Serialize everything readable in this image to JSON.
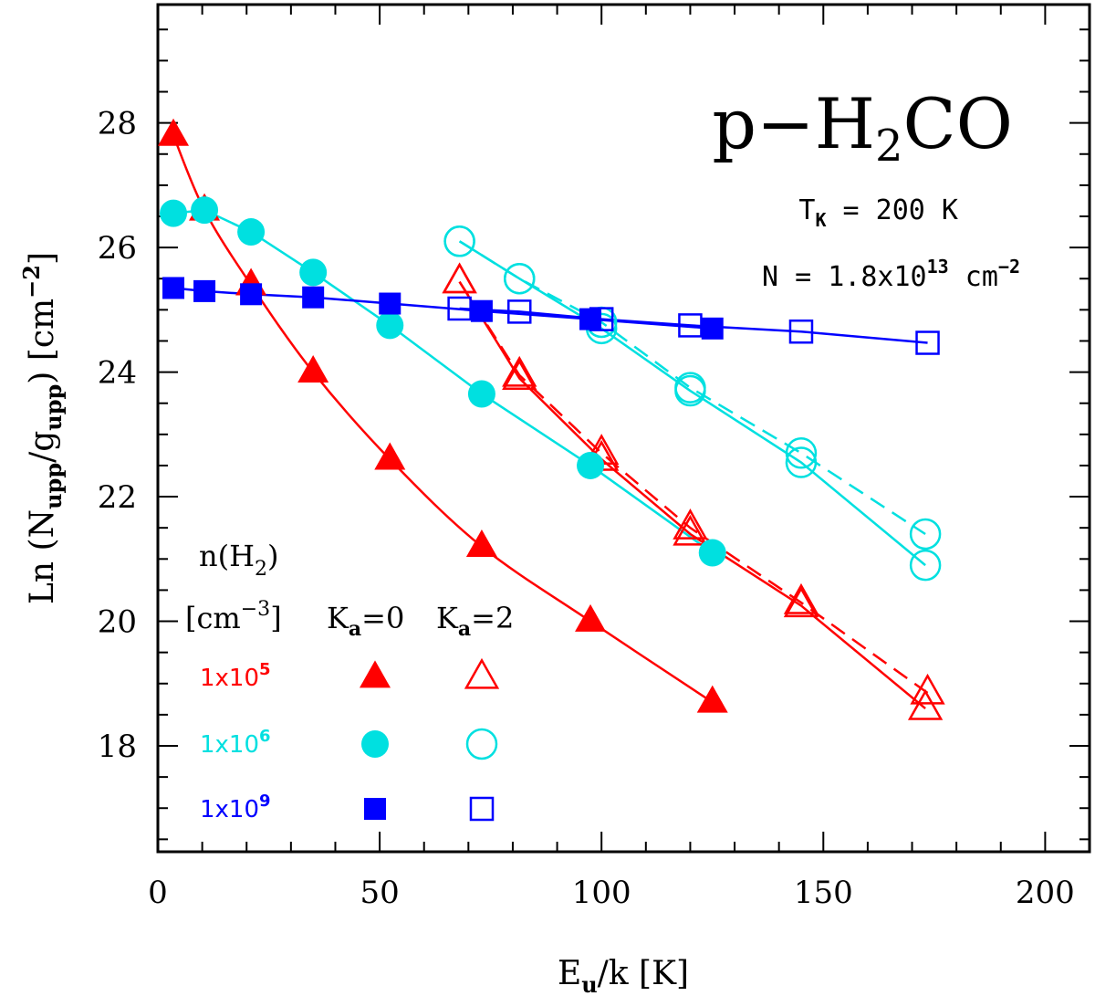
{
  "chart_data": {
    "type": "scatter",
    "title": "p-H2CO",
    "title_parts": {
      "main": "p−H",
      "sub": "2",
      "tail": "CO"
    },
    "xlabel": "E_u/k [K]",
    "xlabel_parts": {
      "main": "E",
      "sub": "u",
      "tail": "/k [K]"
    },
    "ylabel": "Ln (N_upp/g_upp) [cm^-2]",
    "ylabel_parts": {
      "lead": "Ln (N",
      "sub1": "upp",
      "mid": "/g",
      "sub2": "upp",
      "mid2": ") [cm",
      "sup": "−2",
      "tail": "]"
    },
    "xlim": [
      0,
      210
    ],
    "ylim": [
      16.3,
      29.9
    ],
    "xticks": [
      0,
      50,
      100,
      150,
      200
    ],
    "yticks": [
      18,
      20,
      22,
      24,
      26,
      28
    ],
    "xtick_labels": [
      "0",
      "50",
      "100",
      "150",
      "200"
    ],
    "ytick_labels": [
      "18",
      "20",
      "22",
      "24",
      "26",
      "28"
    ],
    "annotations": {
      "tk": {
        "main": "T",
        "sub": "K",
        "tail": " = 200 K"
      },
      "n": {
        "main": "N = 1.8x10",
        "sup": "13",
        "tail": " cm",
        "sup2": "−2"
      }
    },
    "legend": {
      "title_line1": {
        "main": "n(H",
        "sub": "2",
        "tail": ")"
      },
      "title_line2": {
        "main": "[cm",
        "sup": "−3",
        "tail": "]"
      },
      "ka0": {
        "main": "K",
        "sub": "a",
        "tail": "=0"
      },
      "ka2": {
        "main": "K",
        "sub": "a",
        "tail": "=2"
      },
      "rows": [
        {
          "label_main": "1x10",
          "label_sup": "5",
          "color": "#ff0000",
          "shape": "triangle"
        },
        {
          "label_main": "1x10",
          "label_sup": "6",
          "color": "#00e0e0",
          "shape": "circle"
        },
        {
          "label_main": "1x10",
          "label_sup": "9",
          "color": "#0000ff",
          "shape": "square"
        }
      ]
    },
    "series": [
      {
        "name": "1x10^5 Ka=0",
        "color": "#ff0000",
        "marker": "triangle",
        "filled": true,
        "line": "solid",
        "curve": true,
        "x": [
          3.5,
          10.5,
          21,
          35,
          52.3,
          73,
          97.5,
          125
        ],
        "y": [
          27.8,
          26.6,
          25.4,
          24.0,
          22.6,
          21.2,
          20.0,
          18.7
        ]
      },
      {
        "name": "1x10^5 Ka=2 (branch A)",
        "color": "#ff0000",
        "marker": "triangle",
        "filled": false,
        "line": "solid",
        "curve": false,
        "x": [
          68,
          81.5,
          100,
          120,
          145,
          173
        ],
        "y": [
          25.45,
          23.9,
          22.6,
          21.4,
          20.25,
          18.6
        ]
      },
      {
        "name": "1x10^5 Ka=2 (branch B)",
        "color": "#ff0000",
        "marker": "triangle",
        "filled": false,
        "line": "dashed",
        "curve": false,
        "x": [
          68,
          81.5,
          100,
          120,
          145,
          173.5
        ],
        "y": [
          25.45,
          23.95,
          22.7,
          21.5,
          20.3,
          18.85
        ]
      },
      {
        "name": "1x10^6 Ka=0",
        "color": "#00e0e0",
        "marker": "circle",
        "filled": true,
        "line": "solid",
        "curve": false,
        "x": [
          3.5,
          10.5,
          21,
          35,
          52.3,
          73,
          97.5,
          125
        ],
        "y": [
          26.55,
          26.6,
          26.25,
          25.6,
          24.75,
          23.65,
          22.5,
          21.1
        ]
      },
      {
        "name": "1x10^6 Ka=2 (branch A)",
        "color": "#00e0e0",
        "marker": "circle",
        "filled": false,
        "line": "solid",
        "curve": false,
        "x": [
          68,
          81.5,
          100,
          120,
          145,
          173
        ],
        "y": [
          26.1,
          25.5,
          24.7,
          23.7,
          22.55,
          20.9
        ]
      },
      {
        "name": "1x10^6 Ka=2 (branch B)",
        "color": "#00e0e0",
        "marker": "circle",
        "filled": false,
        "line": "dashed",
        "curve": false,
        "x": [
          68,
          81.5,
          100,
          120,
          145,
          173
        ],
        "y": [
          26.1,
          25.5,
          24.8,
          23.75,
          22.7,
          21.4
        ]
      },
      {
        "name": "1x10^9 Ka=0",
        "color": "#0000ff",
        "marker": "square",
        "filled": true,
        "line": "solid",
        "curve": false,
        "x": [
          3.5,
          10.5,
          21,
          35,
          52.3,
          73,
          97.5,
          125
        ],
        "y": [
          25.35,
          25.3,
          25.25,
          25.2,
          25.1,
          24.98,
          24.85,
          24.7
        ]
      },
      {
        "name": "1x10^9 Ka=2",
        "color": "#0000ff",
        "marker": "square",
        "filled": false,
        "line": "solid",
        "curve": false,
        "x": [
          68,
          81.5,
          100,
          120,
          145,
          173.5
        ],
        "y": [
          25.02,
          24.97,
          24.85,
          24.75,
          24.65,
          24.47
        ]
      }
    ]
  }
}
